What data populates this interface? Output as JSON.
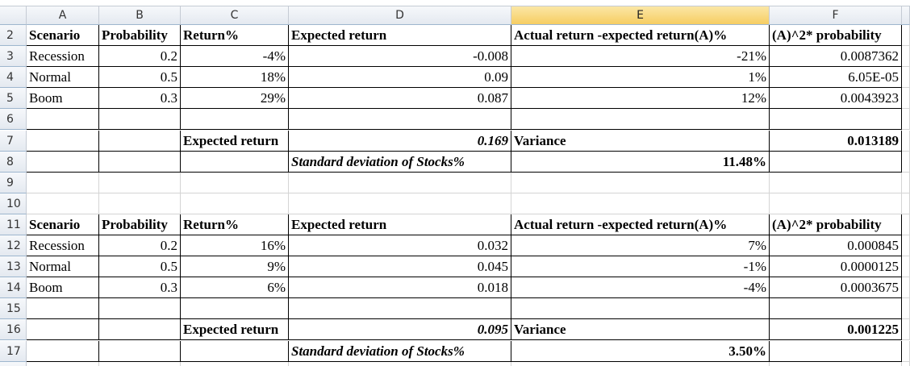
{
  "column_headers": [
    "A",
    "B",
    "C",
    "D",
    "E",
    "F"
  ],
  "rows": [
    {
      "number": 2,
      "cells": [
        "Scenario",
        "Probability",
        "Return%",
        "Expected return",
        "Actual return -expected return(A)%",
        "(A)^2* probability"
      ]
    },
    {
      "number": 3,
      "cells": [
        "Recession",
        "0.2",
        "-4%",
        "-0.008",
        "-21%",
        "0.0087362"
      ]
    },
    {
      "number": 4,
      "cells": [
        "Normal",
        "0.5",
        "18%",
        "0.09",
        "1%",
        "6.05E-05"
      ]
    },
    {
      "number": 5,
      "cells": [
        "Boom",
        "0.3",
        "29%",
        "0.087",
        "12%",
        "0.0043923"
      ]
    },
    {
      "number": 6,
      "cells": [
        null,
        null,
        null,
        null,
        null,
        null
      ]
    },
    {
      "number": 7,
      "cells": [
        null,
        null,
        "Expected return",
        "0.169",
        "Variance",
        "0.013189"
      ]
    },
    {
      "number": 8,
      "cells": [
        null,
        null,
        null,
        "Standard deviation of Stocks%",
        "11.48%",
        null
      ]
    },
    {
      "number": 9,
      "cells": [
        null,
        null,
        null,
        null,
        null,
        null
      ]
    },
    {
      "number": 10,
      "cells": [
        null,
        null,
        null,
        null,
        null,
        null
      ]
    },
    {
      "number": 11,
      "cells": [
        "Scenario",
        "Probability",
        "Return%",
        "Expected return",
        "Actual return -expected return(A)%",
        "(A)^2* probability"
      ]
    },
    {
      "number": 12,
      "cells": [
        "Recession",
        "0.2",
        "16%",
        "0.032",
        "7%",
        "0.000845"
      ]
    },
    {
      "number": 13,
      "cells": [
        "Normal",
        "0.5",
        "9%",
        "0.045",
        "-1%",
        "0.0000125"
      ]
    },
    {
      "number": 14,
      "cells": [
        "Boom",
        "0.3",
        "6%",
        "0.018",
        "-4%",
        "0.0003675"
      ]
    },
    {
      "number": 15,
      "cells": [
        null,
        null,
        null,
        null,
        null,
        null
      ]
    },
    {
      "number": 16,
      "cells": [
        null,
        null,
        "Expected return",
        "0.095",
        "Variance",
        "0.001225"
      ]
    },
    {
      "number": 17,
      "cells": [
        null,
        null,
        null,
        "Standard deviation of Stocks%",
        "3.50%",
        null
      ]
    }
  ]
}
